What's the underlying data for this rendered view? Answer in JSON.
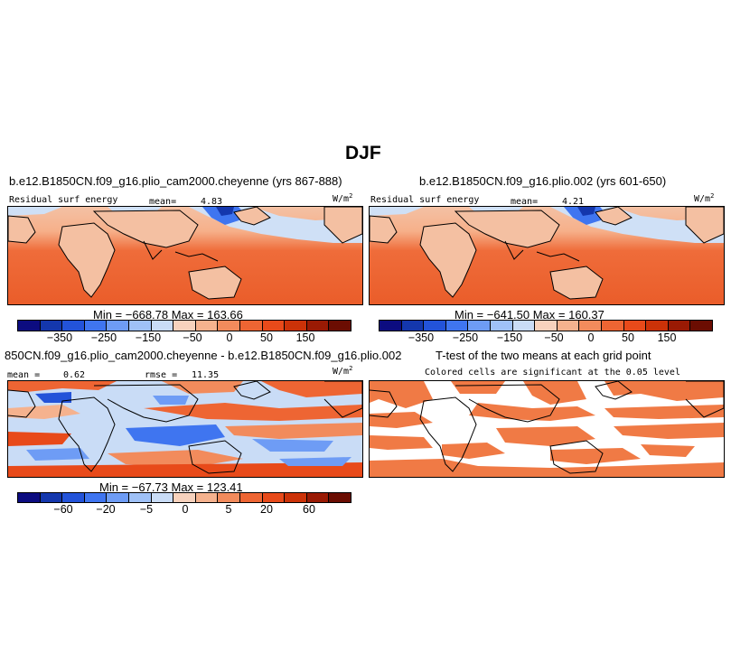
{
  "title": "DJF",
  "panel1": {
    "title": "b.e12.B1850CN.f09_g16.plio_cam2000.cheyenne (yrs 867-888)",
    "variable": "Residual surf energy",
    "mean_label": "mean=",
    "mean_value": "4.83",
    "units": "W/m",
    "units_sup": "2",
    "minmax": "Min = −668.78 Max = 163.66"
  },
  "panel2": {
    "title": "b.e12.B1850CN.f09_g16.plio.002 (yrs 601-650)",
    "variable": "Residual surf energy",
    "mean_label": "mean=",
    "mean_value": "4.21",
    "units": "W/m",
    "units_sup": "2",
    "minmax": "Min = −641.50 Max = 160.37"
  },
  "panel3": {
    "title": "850CN.f09_g16.plio_cam2000.cheyenne - b.e12.B1850CN.f09_g16.plio.002",
    "mean_label": "mean =",
    "mean_value": "0.62",
    "rmse_label": "rmse =",
    "rmse_value": "11.35",
    "units": "W/m",
    "units_sup": "2",
    "minmax": "Min = −67.73 Max = 123.41"
  },
  "panel4": {
    "title": "T-test of the two means at each grid point",
    "subtitle": "Colored cells are significant at the 0.05 level"
  },
  "colorbar_abs": {
    "ticks": [
      "−350",
      "−250",
      "−150",
      "−50",
      "0",
      "50",
      "150"
    ],
    "colors": [
      "#0c0c80",
      "#1437ad",
      "#2353d9",
      "#3f75f0",
      "#6e9cf5",
      "#9fc1f7",
      "#c9dcf6",
      "#f7d2bd",
      "#f5b28e",
      "#f28b5c",
      "#ee6533",
      "#e84a1a",
      "#cc3208",
      "#9a1a04",
      "#6b0d02"
    ]
  },
  "colorbar_diff": {
    "ticks": [
      "−60",
      "−20",
      "−5",
      "0",
      "5",
      "20",
      "60"
    ],
    "colors": [
      "#0c0c80",
      "#1437ad",
      "#2353d9",
      "#3f75f0",
      "#6e9cf5",
      "#9fc1f7",
      "#c9dcf6",
      "#f7d2bd",
      "#f5b28e",
      "#f28b5c",
      "#ee6533",
      "#e84a1a",
      "#cc3208",
      "#9a1a04",
      "#6b0d02"
    ]
  },
  "ttest_color": "#f07a45"
}
